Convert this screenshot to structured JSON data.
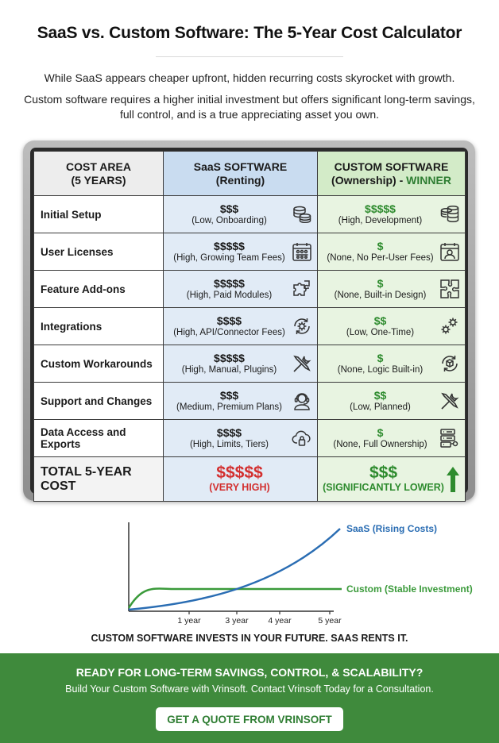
{
  "header": {
    "title": "SaaS vs. Custom Software: The 5-Year Cost Calculator",
    "intro_line1": "While SaaS appears cheaper upfront, hidden recurring costs skyrocket with growth.",
    "intro_line2": "Custom software requires a higher initial investment but offers significant long-term savings, full control, and is a true appreciating asset you own."
  },
  "table": {
    "head_area_1": "COST AREA",
    "head_area_2": "(5 YEARS)",
    "head_saas_1": "SaaS SOFTWARE",
    "head_saas_2": "(Renting)",
    "head_custom_1": "CUSTOM SOFTWARE",
    "head_custom_2a": "(Ownership) - ",
    "head_custom_2b": "WINNER",
    "rows": [
      {
        "area": "Initial Setup",
        "saas_cost": "$$$",
        "saas_note": "(Low, Onboarding)",
        "saas_icon": "coins-icon",
        "custom_cost": "$$$$$",
        "custom_note": "(High, Development)",
        "custom_icon": "coins-icon"
      },
      {
        "area": "User Licenses",
        "saas_cost": "$$$$$",
        "saas_note": "(High, Growing Team Fees)",
        "saas_icon": "team-calendar-icon",
        "custom_cost": "$",
        "custom_note": "(None, No Per-User Fees)",
        "custom_icon": "user-calendar-icon"
      },
      {
        "area": "Feature Add-ons",
        "saas_cost": "$$$$$",
        "saas_note": "(High, Paid Modules)",
        "saas_icon": "puzzle-icon",
        "custom_cost": "$",
        "custom_note": "(None, Built-in Design)",
        "custom_icon": "puzzle-icon"
      },
      {
        "area": "Integrations",
        "saas_cost": "$$$$",
        "saas_note": "(High, API/Connector Fees)",
        "saas_icon": "gear-cycle-icon",
        "custom_cost": "$$",
        "custom_note": "(Low, One-Time)",
        "custom_icon": "gears-icon"
      },
      {
        "area": "Custom Workarounds",
        "saas_cost": "$$$$$",
        "saas_note": "(High, Manual, Plugins)",
        "saas_icon": "tools-icon",
        "custom_cost": "$",
        "custom_note": "(None, Logic Built-in)",
        "custom_icon": "cube-cycle-icon"
      },
      {
        "area": "Support and Changes",
        "saas_cost": "$$$",
        "saas_note": "(Medium, Premium Plans)",
        "saas_icon": "headset-icon",
        "custom_cost": "$$",
        "custom_note": "(Low, Planned)",
        "custom_icon": "tools-icon"
      },
      {
        "area": "Data Access and Exports",
        "saas_cost": "$$$$",
        "saas_note": "(High, Limits, Tiers)",
        "saas_icon": "cloud-lock-icon",
        "custom_cost": "$",
        "custom_note": "(None, Full Ownership)",
        "custom_icon": "server-key-icon"
      }
    ],
    "total": {
      "area": "TOTAL 5-YEAR COST",
      "saas_cost": "$$$$$",
      "saas_note": "(VERY HIGH)",
      "custom_cost": "$$$",
      "custom_note": "(SIGNIFICANTLY LOWER)",
      "custom_icon": "up-arrow-icon"
    }
  },
  "graph": {
    "x_ticks": [
      "1 year",
      "3 year",
      "4 year",
      "5 year"
    ],
    "saas_label": "SaaS (Rising Costs)",
    "custom_label": "Custom (Stable Investment)",
    "caption": "CUSTOM SOFTWARE INVESTS IN YOUR FUTURE. SAAS RENTS IT.",
    "colors": {
      "saas": "#2a6db3",
      "custom": "#3a9a3a"
    }
  },
  "cta": {
    "headline": "READY FOR LONG-TERM SAVINGS, CONTROL, & SCALABILITY?",
    "subline": "Build Your Custom Software with Vrinsoft. Contact Vrinsoft Today for a Consultation.",
    "button": "GET A QUOTE FROM VRINSOFT"
  }
}
